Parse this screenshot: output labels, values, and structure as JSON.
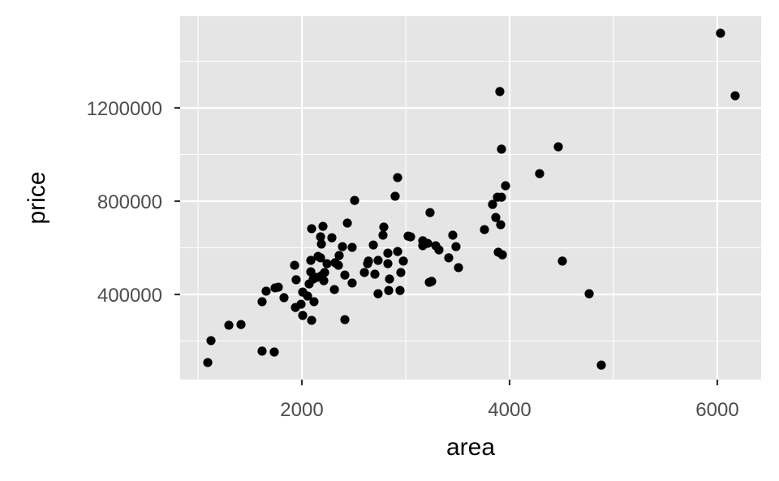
{
  "chart_data": {
    "type": "scatter",
    "title": "",
    "xlabel": "area",
    "ylabel": "price",
    "xlim": [
      828,
      6422
    ],
    "ylim": [
      34783,
      1593043
    ],
    "xticks": [
      2000,
      4000,
      6000
    ],
    "yticks": [
      400000,
      800000,
      1200000
    ],
    "xtick_labels": [
      "2000",
      "4000",
      "6000"
    ],
    "ytick_labels": [
      "400000",
      "800000",
      "1200000"
    ],
    "grid": true,
    "panel_background": "#e5e5e5",
    "point_color": "#000000",
    "points": [
      [
        1094,
        108000
      ],
      [
        1125,
        202000
      ],
      [
        1297,
        268000
      ],
      [
        1414,
        271000
      ],
      [
        1617,
        157000
      ],
      [
        1734,
        153000
      ],
      [
        1617,
        369000
      ],
      [
        1656,
        414000
      ],
      [
        1742,
        428000
      ],
      [
        1773,
        431000
      ],
      [
        1828,
        386000
      ],
      [
        1930,
        525000
      ],
      [
        1945,
        463000
      ],
      [
        1938,
        344000
      ],
      [
        1992,
        358000
      ],
      [
        2008,
        310000
      ],
      [
        2008,
        410000
      ],
      [
        2055,
        393000
      ],
      [
        2070,
        445000
      ],
      [
        2094,
        682000
      ],
      [
        2086,
        546000
      ],
      [
        2086,
        497000
      ],
      [
        2109,
        466000
      ],
      [
        2117,
        369000
      ],
      [
        2094,
        289000
      ],
      [
        2141,
        473000
      ],
      [
        2156,
        563000
      ],
      [
        2180,
        647000
      ],
      [
        2180,
        557000
      ],
      [
        2188,
        616000
      ],
      [
        2203,
        692000
      ],
      [
        2219,
        494000
      ],
      [
        2188,
        480000
      ],
      [
        2211,
        459000
      ],
      [
        2242,
        532000
      ],
      [
        2289,
        643000
      ],
      [
        2313,
        421000
      ],
      [
        2320,
        536000
      ],
      [
        2352,
        525000
      ],
      [
        2359,
        567000
      ],
      [
        2391,
        605000
      ],
      [
        2414,
        483000
      ],
      [
        2414,
        292000
      ],
      [
        2438,
        706000
      ],
      [
        2484,
        602000
      ],
      [
        2484,
        449000
      ],
      [
        2508,
        803000
      ],
      [
        2602,
        494000
      ],
      [
        2633,
        532000
      ],
      [
        2641,
        543000
      ],
      [
        2688,
        612000
      ],
      [
        2703,
        487000
      ],
      [
        2734,
        546000
      ],
      [
        2734,
        403000
      ],
      [
        2781,
        654000
      ],
      [
        2789,
        689000
      ],
      [
        2828,
        577000
      ],
      [
        2828,
        532000
      ],
      [
        2836,
        417000
      ],
      [
        2844,
        466000
      ],
      [
        2898,
        821000
      ],
      [
        2922,
        901000
      ],
      [
        2922,
        584000
      ],
      [
        2945,
        417000
      ],
      [
        2953,
        494000
      ],
      [
        2977,
        543000
      ],
      [
        3023,
        650000
      ],
      [
        3047,
        647000
      ],
      [
        3164,
        630000
      ],
      [
        3164,
        609000
      ],
      [
        3211,
        619000
      ],
      [
        3227,
        452000
      ],
      [
        3250,
        456000
      ],
      [
        3234,
        751000
      ],
      [
        3289,
        609000
      ],
      [
        3320,
        591000
      ],
      [
        3414,
        557000
      ],
      [
        3453,
        654000
      ],
      [
        3484,
        605000
      ],
      [
        3508,
        515000
      ],
      [
        3758,
        678000
      ],
      [
        3836,
        786000
      ],
      [
        3867,
        730000
      ],
      [
        3883,
        817000
      ],
      [
        3914,
        699000
      ],
      [
        3891,
        581000
      ],
      [
        3930,
        570000
      ],
      [
        3906,
        1270000
      ],
      [
        3922,
        1023000
      ],
      [
        3922,
        817000
      ],
      [
        3961,
        866000
      ],
      [
        4289,
        918000
      ],
      [
        4469,
        1033000
      ],
      [
        4508,
        543000
      ],
      [
        4766,
        403000
      ],
      [
        4883,
        97000
      ],
      [
        6031,
        1520000
      ],
      [
        6172,
        1252000
      ]
    ]
  }
}
